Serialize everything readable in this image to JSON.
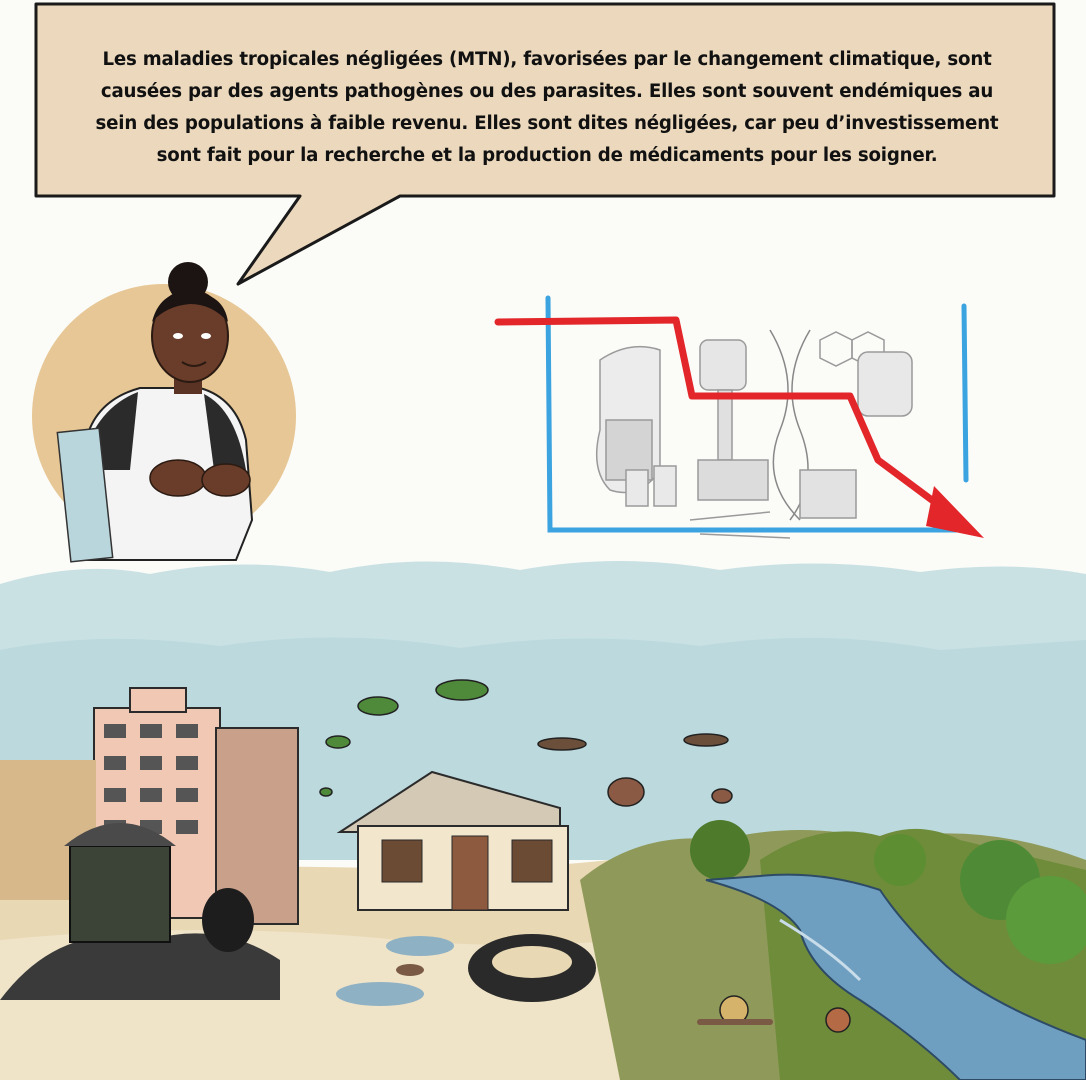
{
  "speech_bubble": {
    "lines": [
      "Les maladies tropicales négligées (MTN), favorisées par le changement climatique, sont",
      "causées par des agents pathogènes ou des parasites. Elles sont souvent endémiques au",
      "sein des populations à faible revenu. Elles sont dites négligées, car peu d’investissement",
      "sont fait pour la recherche et la production de médicaments pour les soigner."
    ]
  },
  "colors": {
    "bubble_fill": "#ecd9bd",
    "portrait_circle": "#e7c795",
    "chart_frame": "#3aa3e0",
    "trend_arrow": "#e2262a",
    "sky_band": "#c9e1e3",
    "ground": "#e8d8b4",
    "river": "#6f9fc0"
  },
  "icons": {
    "speaker": "health-worker-illustration",
    "chart": "declining-research-chart",
    "scene": "polluted-slum-landscape"
  }
}
